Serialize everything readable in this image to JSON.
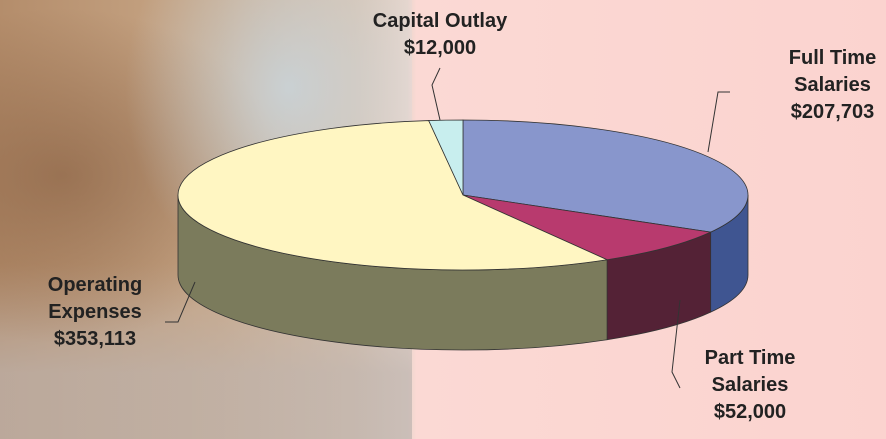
{
  "chart_data": {
    "type": "pie",
    "categories": [
      "Full Time Salaries",
      "Part Time Salaries",
      "Operating Expenses",
      "Capital Outlay"
    ],
    "values": [
      207703,
      52000,
      353113,
      12000
    ],
    "value_labels": [
      "$207,703",
      "$52,000",
      "$353,113",
      "$12,000"
    ],
    "colors": [
      "#8896cc",
      "#b83a6e",
      "#fff6c2",
      "#c8eeee"
    ],
    "side_colors": [
      "#3f5591",
      "#542236",
      "#7b7b5c",
      "#8fb0b0"
    ]
  }
}
